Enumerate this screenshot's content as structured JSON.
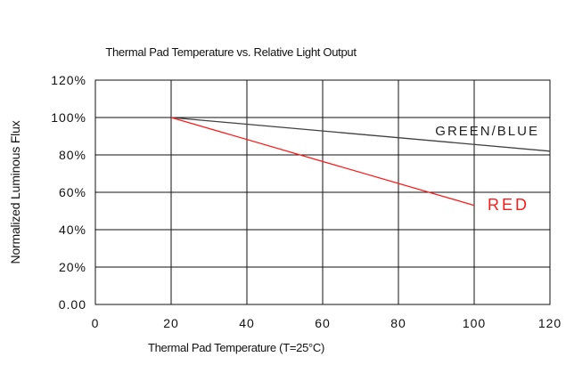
{
  "chart_data": {
    "type": "line",
    "title": "Thermal Pad Temperature vs. Relative Light Output",
    "xlabel": "Thermal Pad Temperature (T=25°C)",
    "ylabel": "Normalized Luminous Flux",
    "xlim": [
      0,
      120
    ],
    "ylim": [
      0,
      120
    ],
    "x_ticks": [
      "0",
      "20",
      "40",
      "60",
      "80",
      "100",
      "120"
    ],
    "y_ticks": [
      "0.00",
      "20%",
      "40%",
      "60%",
      "80%",
      "100%",
      "120%"
    ],
    "grid": true,
    "series": [
      {
        "name": "GREEN/BLUE",
        "color": "#404040",
        "x": [
          20,
          120
        ],
        "y": [
          100,
          82
        ]
      },
      {
        "name": "RED",
        "color": "#ff1a1a",
        "x": [
          20,
          100
        ],
        "y": [
          100,
          53
        ]
      }
    ]
  }
}
